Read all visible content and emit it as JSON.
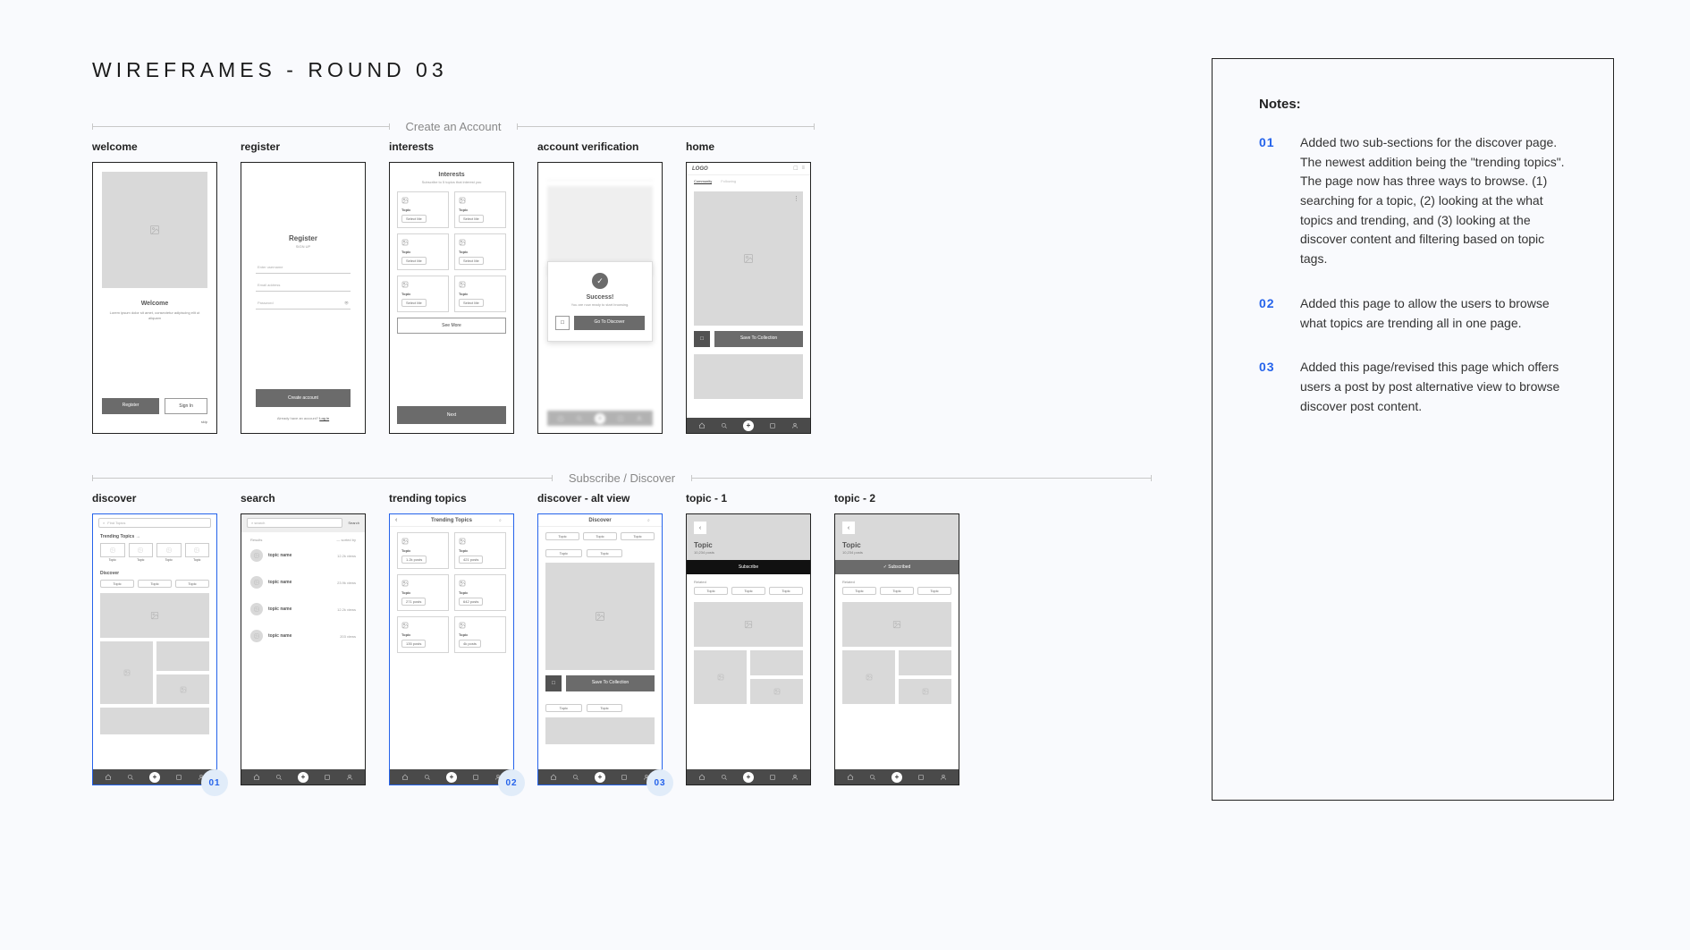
{
  "title": "WIREFRAMES - ROUND 03",
  "colors": {
    "bg": "#f9fafd",
    "accent": "#2563eb",
    "grey": "#6b6b6b",
    "ph": "#d9d9d9"
  },
  "sections": [
    {
      "label": "Create an Account",
      "wide": false,
      "frames": [
        {
          "id": "welcome",
          "label": "welcome"
        },
        {
          "id": "register",
          "label": "register"
        },
        {
          "id": "interests",
          "label": "interests"
        },
        {
          "id": "verification",
          "label": "account verification"
        },
        {
          "id": "home",
          "label": "home"
        }
      ]
    },
    {
      "label": "Subscribe / Discover",
      "wide": true,
      "frames": [
        {
          "id": "discover",
          "label": "discover",
          "highlight": true,
          "badge": "01"
        },
        {
          "id": "search",
          "label": "search"
        },
        {
          "id": "trending",
          "label": "trending topics",
          "highlight": true,
          "badge": "02"
        },
        {
          "id": "discover-alt",
          "label": "discover - alt view",
          "highlight": true,
          "badge": "03"
        },
        {
          "id": "topic1",
          "label": "topic - 1"
        },
        {
          "id": "topic2",
          "label": "topic - 2"
        }
      ]
    }
  ],
  "wf": {
    "welcome": {
      "title": "Welcome",
      "sub": "Lorem ipsum dolor sit amet, consectetur adipiscing elit ut aliquam",
      "register": "Register",
      "signin": "Sign In",
      "skip": "skip"
    },
    "register": {
      "title": "Register",
      "sub": "SIGN UP",
      "ph1": "Enter username",
      "ph2": "Email address",
      "ph3": "Password",
      "btn": "Create account",
      "foot": "Already have an account? ",
      "login": "Log in"
    },
    "interests": {
      "title": "Interests",
      "sub": "Subscribe to 5 topics that interest you",
      "topic": "Topic",
      "sel": "Select Me",
      "seemore": "See More",
      "next": "Next"
    },
    "verification": {
      "title": "Success!",
      "sub": "You are now ready to start browsing.",
      "btn": "Go To Discover"
    },
    "home": {
      "logo": "LOGO",
      "tab1": "Community",
      "tab2": "Following",
      "save": "Save To Collection"
    },
    "discover": {
      "search": "Find Topics",
      "trending": "Trending Topics  →",
      "topic": "Topic",
      "discover": "Discover",
      "pills": [
        "Topic",
        "Topic",
        "Topic"
      ]
    },
    "search": {
      "ph": "search",
      "btn": "Search",
      "res": "Results",
      "sort": "— sorted by",
      "item": "topic name",
      "counts": [
        "12.2k views",
        "23.9k views",
        "12.2k views",
        "203 views"
      ]
    },
    "trending": {
      "title": "Trending Topics",
      "topic": "Topic",
      "c1": "1.2k posts",
      "c2": "421 posts",
      "c3": "271 posts",
      "c4": "642 posts",
      "c5": "135 posts",
      "c6": "4k posts"
    },
    "discoverAlt": {
      "title": "Discover",
      "pills": [
        "Topic",
        "Topic",
        "Topic"
      ],
      "t": "Topic",
      "save": "Save To Collection"
    },
    "topic": {
      "title": "Topic",
      "sub": "10,234 posts",
      "subscribe": "Subscribe",
      "subscribed": "✓  Subscribed",
      "related": "Related",
      "pills": [
        "Topic",
        "Topic",
        "Topic"
      ]
    }
  },
  "notes": {
    "title": "Notes:",
    "items": [
      {
        "num": "01",
        "text": "Added two sub-sections for the discover page. The newest addition being the \"trending topics\". The page now has three ways to browse. (1) searching for a topic, (2) looking at the what topics and trending, and (3) looking at the discover content and filtering based on topic tags."
      },
      {
        "num": "02",
        "text": "Added this page to allow the users to browse what topics are trending all in one page."
      },
      {
        "num": "03",
        "text": "Added this page/revised this page which offers users a post by post alternative view to browse discover post content."
      }
    ]
  }
}
